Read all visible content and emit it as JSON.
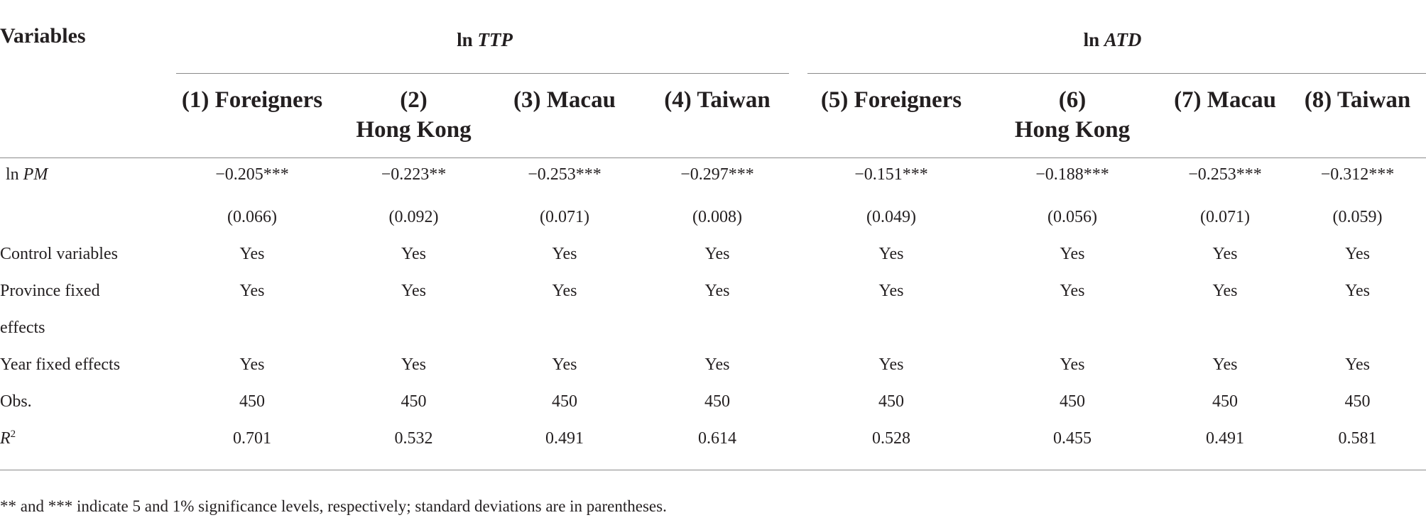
{
  "table": {
    "variables_header": "Variables",
    "groups": [
      {
        "prefix": "ln ",
        "var": "TTP"
      },
      {
        "prefix": "ln ",
        "var": "ATD"
      }
    ],
    "columns": [
      {
        "line1": "(1) Foreigners",
        "line2": ""
      },
      {
        "line1": "(2)",
        "line2": "Hong Kong"
      },
      {
        "line1": "(3) Macau",
        "line2": ""
      },
      {
        "line1": "(4) Taiwan",
        "line2": ""
      },
      {
        "line1": "(5) Foreigners",
        "line2": ""
      },
      {
        "line1": "(6)",
        "line2": "Hong Kong"
      },
      {
        "line1": "(7) Macau",
        "line2": ""
      },
      {
        "line1": "(8) Taiwan",
        "line2": ""
      }
    ],
    "rows": {
      "lnpm": {
        "label_prefix": "ln ",
        "label_var": "PM",
        "values": [
          "−0.205***",
          "−0.223**",
          "−0.253***",
          "−0.297***",
          "−0.151***",
          "−0.188***",
          "−0.253***",
          "−0.312***"
        ]
      },
      "se": {
        "label": "",
        "values": [
          "(0.066)",
          "(0.092)",
          "(0.071)",
          "(0.008)",
          "(0.049)",
          "(0.056)",
          "(0.071)",
          "(0.059)"
        ]
      },
      "controls": {
        "label": "Control variables",
        "values": [
          "Yes",
          "Yes",
          "Yes",
          "Yes",
          "Yes",
          "Yes",
          "Yes",
          "Yes"
        ]
      },
      "province_fe": {
        "label_line1": "Province fixed",
        "label_line2": "effects",
        "values": [
          "Yes",
          "Yes",
          "Yes",
          "Yes",
          "Yes",
          "Yes",
          "Yes",
          "Yes"
        ]
      },
      "year_fe": {
        "label": "Year fixed effects",
        "values": [
          "Yes",
          "Yes",
          "Yes",
          "Yes",
          "Yes",
          "Yes",
          "Yes",
          "Yes"
        ]
      },
      "obs": {
        "label": "Obs.",
        "values": [
          "450",
          "450",
          "450",
          "450",
          "450",
          "450",
          "450",
          "450"
        ]
      },
      "r2": {
        "label_var": "R",
        "label_sup": "2",
        "values": [
          "0.701",
          "0.532",
          "0.491",
          "0.614",
          "0.528",
          "0.455",
          "0.491",
          "0.581"
        ]
      }
    }
  },
  "note": "** and *** indicate 5 and 1% significance levels, respectively; standard deviations are in parentheses."
}
